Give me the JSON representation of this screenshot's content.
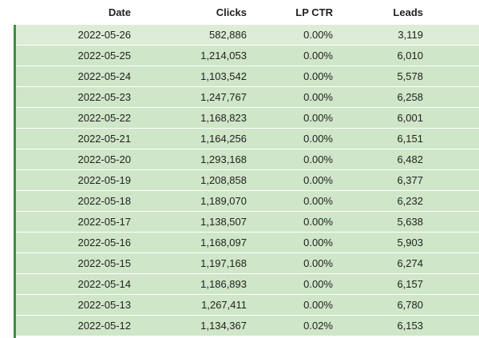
{
  "table": {
    "columns": {
      "date": "Date",
      "clicks": "Clicks",
      "lp_ctr": "LP CTR",
      "leads": "Leads"
    },
    "rows": [
      {
        "date": "2022-05-26",
        "clicks": "582,886",
        "lp_ctr": "0.00%",
        "leads": "3,119"
      },
      {
        "date": "2022-05-25",
        "clicks": "1,214,053",
        "lp_ctr": "0.00%",
        "leads": "6,010"
      },
      {
        "date": "2022-05-24",
        "clicks": "1,103,542",
        "lp_ctr": "0.00%",
        "leads": "5,578"
      },
      {
        "date": "2022-05-23",
        "clicks": "1,247,767",
        "lp_ctr": "0.00%",
        "leads": "6,258"
      },
      {
        "date": "2022-05-22",
        "clicks": "1,168,823",
        "lp_ctr": "0.00%",
        "leads": "6,001"
      },
      {
        "date": "2022-05-21",
        "clicks": "1,164,256",
        "lp_ctr": "0.00%",
        "leads": "6,151"
      },
      {
        "date": "2022-05-20",
        "clicks": "1,293,168",
        "lp_ctr": "0.00%",
        "leads": "6,482"
      },
      {
        "date": "2022-05-19",
        "clicks": "1,208,858",
        "lp_ctr": "0.00%",
        "leads": "6,377"
      },
      {
        "date": "2022-05-18",
        "clicks": "1,189,070",
        "lp_ctr": "0.00%",
        "leads": "6,232"
      },
      {
        "date": "2022-05-17",
        "clicks": "1,138,507",
        "lp_ctr": "0.00%",
        "leads": "5,638"
      },
      {
        "date": "2022-05-16",
        "clicks": "1,168,097",
        "lp_ctr": "0.00%",
        "leads": "5,903"
      },
      {
        "date": "2022-05-15",
        "clicks": "1,197,168",
        "lp_ctr": "0.00%",
        "leads": "6,274"
      },
      {
        "date": "2022-05-14",
        "clicks": "1,186,893",
        "lp_ctr": "0.00%",
        "leads": "6,157"
      },
      {
        "date": "2022-05-13",
        "clicks": "1,267,411",
        "lp_ctr": "0.00%",
        "leads": "6,780"
      },
      {
        "date": "2022-05-12",
        "clicks": "1,134,367",
        "lp_ctr": "0.02%",
        "leads": "6,153"
      }
    ]
  },
  "colors": {
    "row_background": "#cfe6c8",
    "first_row_background": "#dcecd6",
    "accent_bar": "#3e8e41"
  }
}
